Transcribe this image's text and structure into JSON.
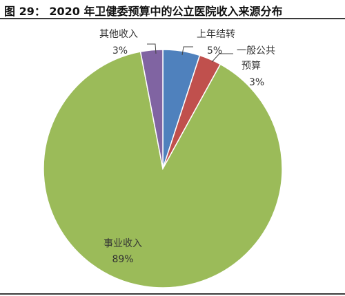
{
  "title": "图 29： 2020 年卫健委预算中的公立医院收入来源分布",
  "chart_data": {
    "type": "pie",
    "title": "",
    "start_angle_deg": 0,
    "direction": "clockwise",
    "slices": [
      {
        "name": "上年结转",
        "value": 5,
        "label": "5%",
        "color": "#4F81BD"
      },
      {
        "name": "一般公共预算",
        "name_lines": [
          "一般公共",
          "预算"
        ],
        "value": 3,
        "label": "3%",
        "color": "#C0504D"
      },
      {
        "name": "事业收入",
        "value": 89,
        "label": "89%",
        "color": "#9BBB59"
      },
      {
        "name": "其他收入",
        "value": 3,
        "label": "3%",
        "color": "#8064A2"
      }
    ]
  }
}
